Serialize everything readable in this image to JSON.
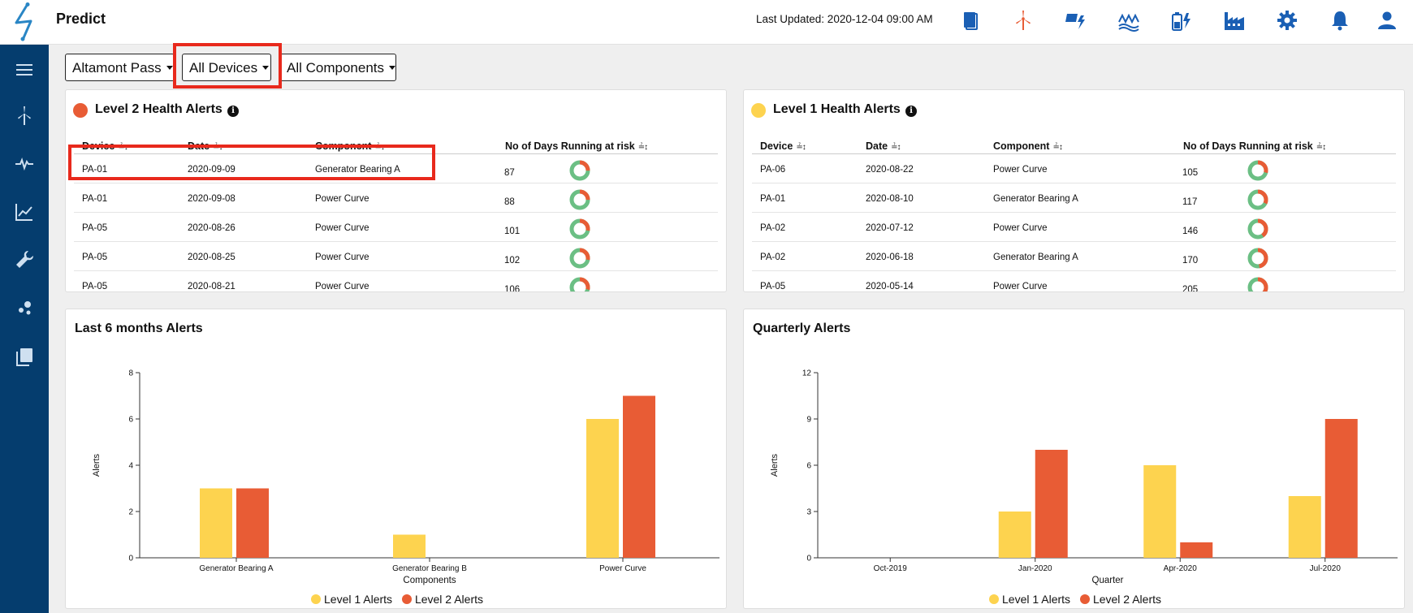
{
  "app": {
    "title": "Predict",
    "last_updated": "Last Updated: 2020-12-04 09:00 AM"
  },
  "colors": {
    "level1": "#fdd34f",
    "level2": "#e85c35",
    "donut_green": "#6bbf84",
    "sidebar": "#053d6e",
    "icon_blue": "#1a5fb4",
    "icon_orange": "#e85c35"
  },
  "top_icons": [
    "book-icon",
    "wind-turbine-icon",
    "solar-power-icon",
    "hydro-icon",
    "battery-icon",
    "factory-icon",
    "settings-gear-icon",
    "bell-icon",
    "user-icon"
  ],
  "sidebar_icons": [
    "menu-icon",
    "wind-turbine-icon",
    "pulse-icon",
    "line-chart-icon",
    "wrench-icon",
    "scatter-icon",
    "library-icon"
  ],
  "filters": {
    "site": "Altamont Pass",
    "devices": "All Devices",
    "components": "All Components"
  },
  "level2": {
    "title": "Level 2 Health Alerts",
    "columns": [
      "Device",
      "Date",
      "Component",
      "No of Days Running at risk"
    ],
    "rows": [
      {
        "device": "PA-01",
        "date": "2020-09-09",
        "component": "Generator Bearing A",
        "days": "87",
        "risk_fraction": 0.25
      },
      {
        "device": "PA-01",
        "date": "2020-09-08",
        "component": "Power Curve",
        "days": "88",
        "risk_fraction": 0.25
      },
      {
        "device": "PA-05",
        "date": "2020-08-26",
        "component": "Power Curve",
        "days": "101",
        "risk_fraction": 0.28
      },
      {
        "device": "PA-05",
        "date": "2020-08-25",
        "component": "Power Curve",
        "days": "102",
        "risk_fraction": 0.28
      },
      {
        "device": "PA-05",
        "date": "2020-08-21",
        "component": "Power Curve",
        "days": "106",
        "risk_fraction": 0.29
      }
    ]
  },
  "level1": {
    "title": "Level 1 Health Alerts",
    "columns": [
      "Device",
      "Date",
      "Component",
      "No of Days Running at risk"
    ],
    "rows": [
      {
        "device": "PA-06",
        "date": "2020-08-22",
        "component": "Power Curve",
        "days": "105",
        "risk_fraction": 0.29
      },
      {
        "device": "PA-01",
        "date": "2020-08-10",
        "component": "Generator Bearing A",
        "days": "117",
        "risk_fraction": 0.32
      },
      {
        "device": "PA-02",
        "date": "2020-07-12",
        "component": "Power Curve",
        "days": "146",
        "risk_fraction": 0.4
      },
      {
        "device": "PA-02",
        "date": "2020-06-18",
        "component": "Generator Bearing A",
        "days": "170",
        "risk_fraction": 0.47
      },
      {
        "device": "PA-05",
        "date": "2020-05-14",
        "component": "Power Curve",
        "days": "205",
        "risk_fraction": 0.56
      }
    ]
  },
  "chart_data": [
    {
      "type": "bar",
      "title": "Last 6 months Alerts",
      "xlabel": "Components",
      "ylabel": "Alerts",
      "categories": [
        "Generator Bearing A",
        "Generator Bearing B",
        "Power Curve"
      ],
      "series": [
        {
          "name": "Level 1 Alerts",
          "values": [
            3,
            1,
            6
          ]
        },
        {
          "name": "Level 2 Alerts",
          "values": [
            3,
            0,
            7
          ]
        }
      ],
      "ylim": [
        0,
        8
      ],
      "yticks": [
        0,
        2,
        4,
        6,
        8
      ],
      "legend": "bottom"
    },
    {
      "type": "bar",
      "title": "Quarterly Alerts",
      "xlabel": "Quarter",
      "ylabel": "Alerts",
      "categories": [
        "Oct-2019",
        "Jan-2020",
        "Apr-2020",
        "Jul-2020"
      ],
      "series": [
        {
          "name": "Level 1 Alerts",
          "values": [
            0,
            3,
            6,
            4
          ]
        },
        {
          "name": "Level 2 Alerts",
          "values": [
            0,
            7,
            1,
            9
          ]
        }
      ],
      "ylim": [
        0,
        12
      ],
      "yticks": [
        0,
        3,
        6,
        9,
        12
      ],
      "legend": "bottom"
    }
  ]
}
